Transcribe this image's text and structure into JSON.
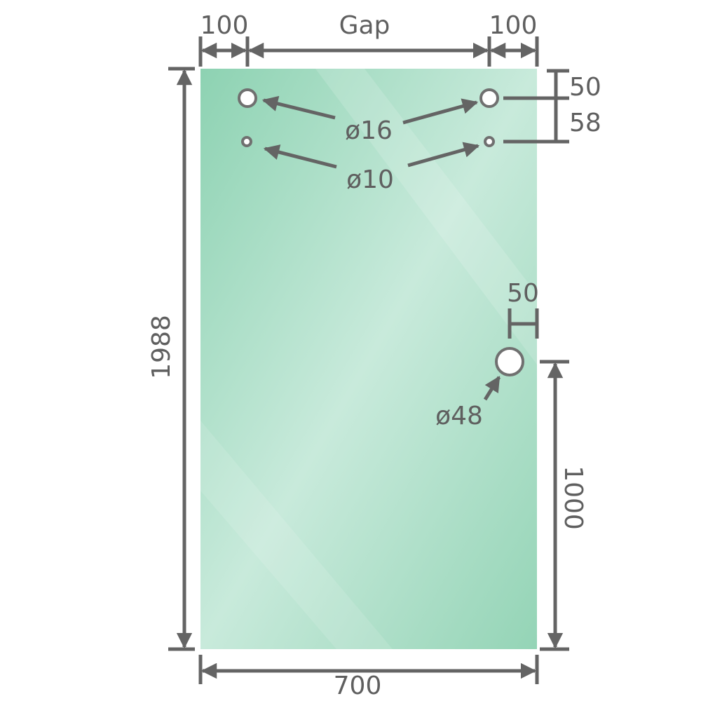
{
  "labels": {
    "left_offset": "100",
    "gap": "Gap",
    "right_offset": "100",
    "top_hole_offset": "50",
    "hole_spacing": "58",
    "height": "1988",
    "width": "700",
    "large_hole_edge_offset": "50",
    "large_hole_height": "1000",
    "small_top_holes": "ø16",
    "smaller_holes": "ø10",
    "large_hole": "ø48"
  },
  "colors": {
    "glass_edge": "#8dd2b2",
    "glass_center": "#c8eadb",
    "dimension_line": "#646464"
  }
}
